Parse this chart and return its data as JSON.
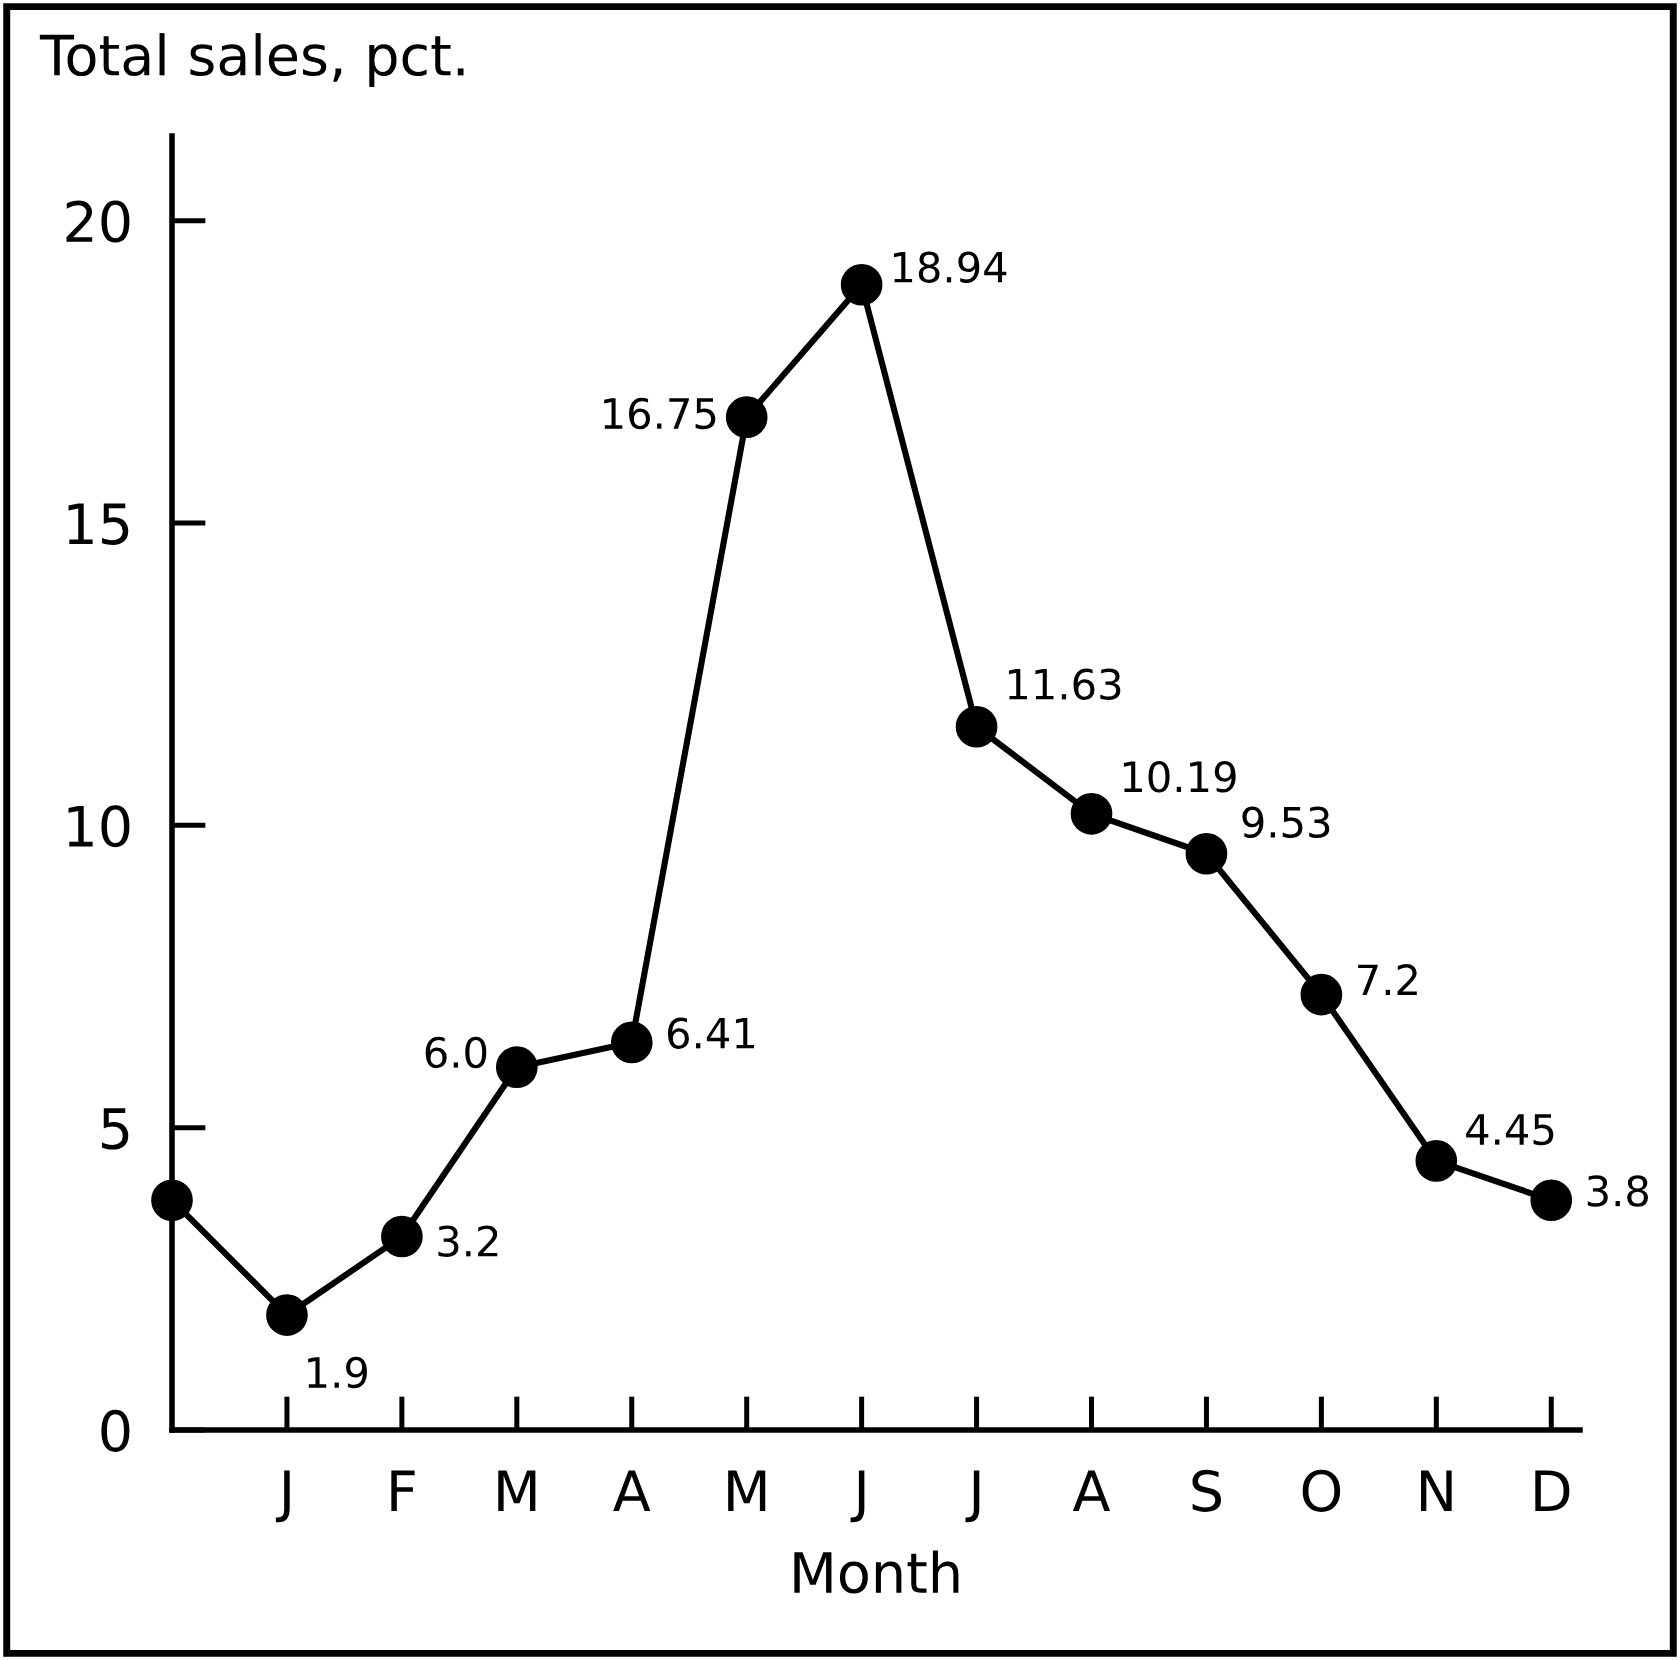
{
  "chart_data": {
    "type": "line",
    "ylabel": "Total sales, pct.",
    "xlabel": "Month",
    "categories": [
      null,
      "J",
      "F",
      "M",
      "A",
      "M",
      "J",
      "J",
      "A",
      "S",
      "O",
      "N",
      "D"
    ],
    "values": [
      3.8,
      1.9,
      3.2,
      6.0,
      6.41,
      16.75,
      18.94,
      11.63,
      10.19,
      9.53,
      7.2,
      4.45,
      3.8
    ],
    "value_labels": [
      null,
      "1.9",
      "3.2",
      "6.0",
      "6.41",
      "16.75",
      "18.94",
      "11.63",
      "10.19",
      "9.53",
      "7.2",
      "4.45",
      "3.8"
    ],
    "color": "#000000",
    "marker": "circle",
    "line_style": "solid",
    "grid": false,
    "legend": false,
    "ylim": [
      0,
      21.4
    ],
    "yticks": [
      0,
      5,
      10,
      15,
      20
    ]
  }
}
